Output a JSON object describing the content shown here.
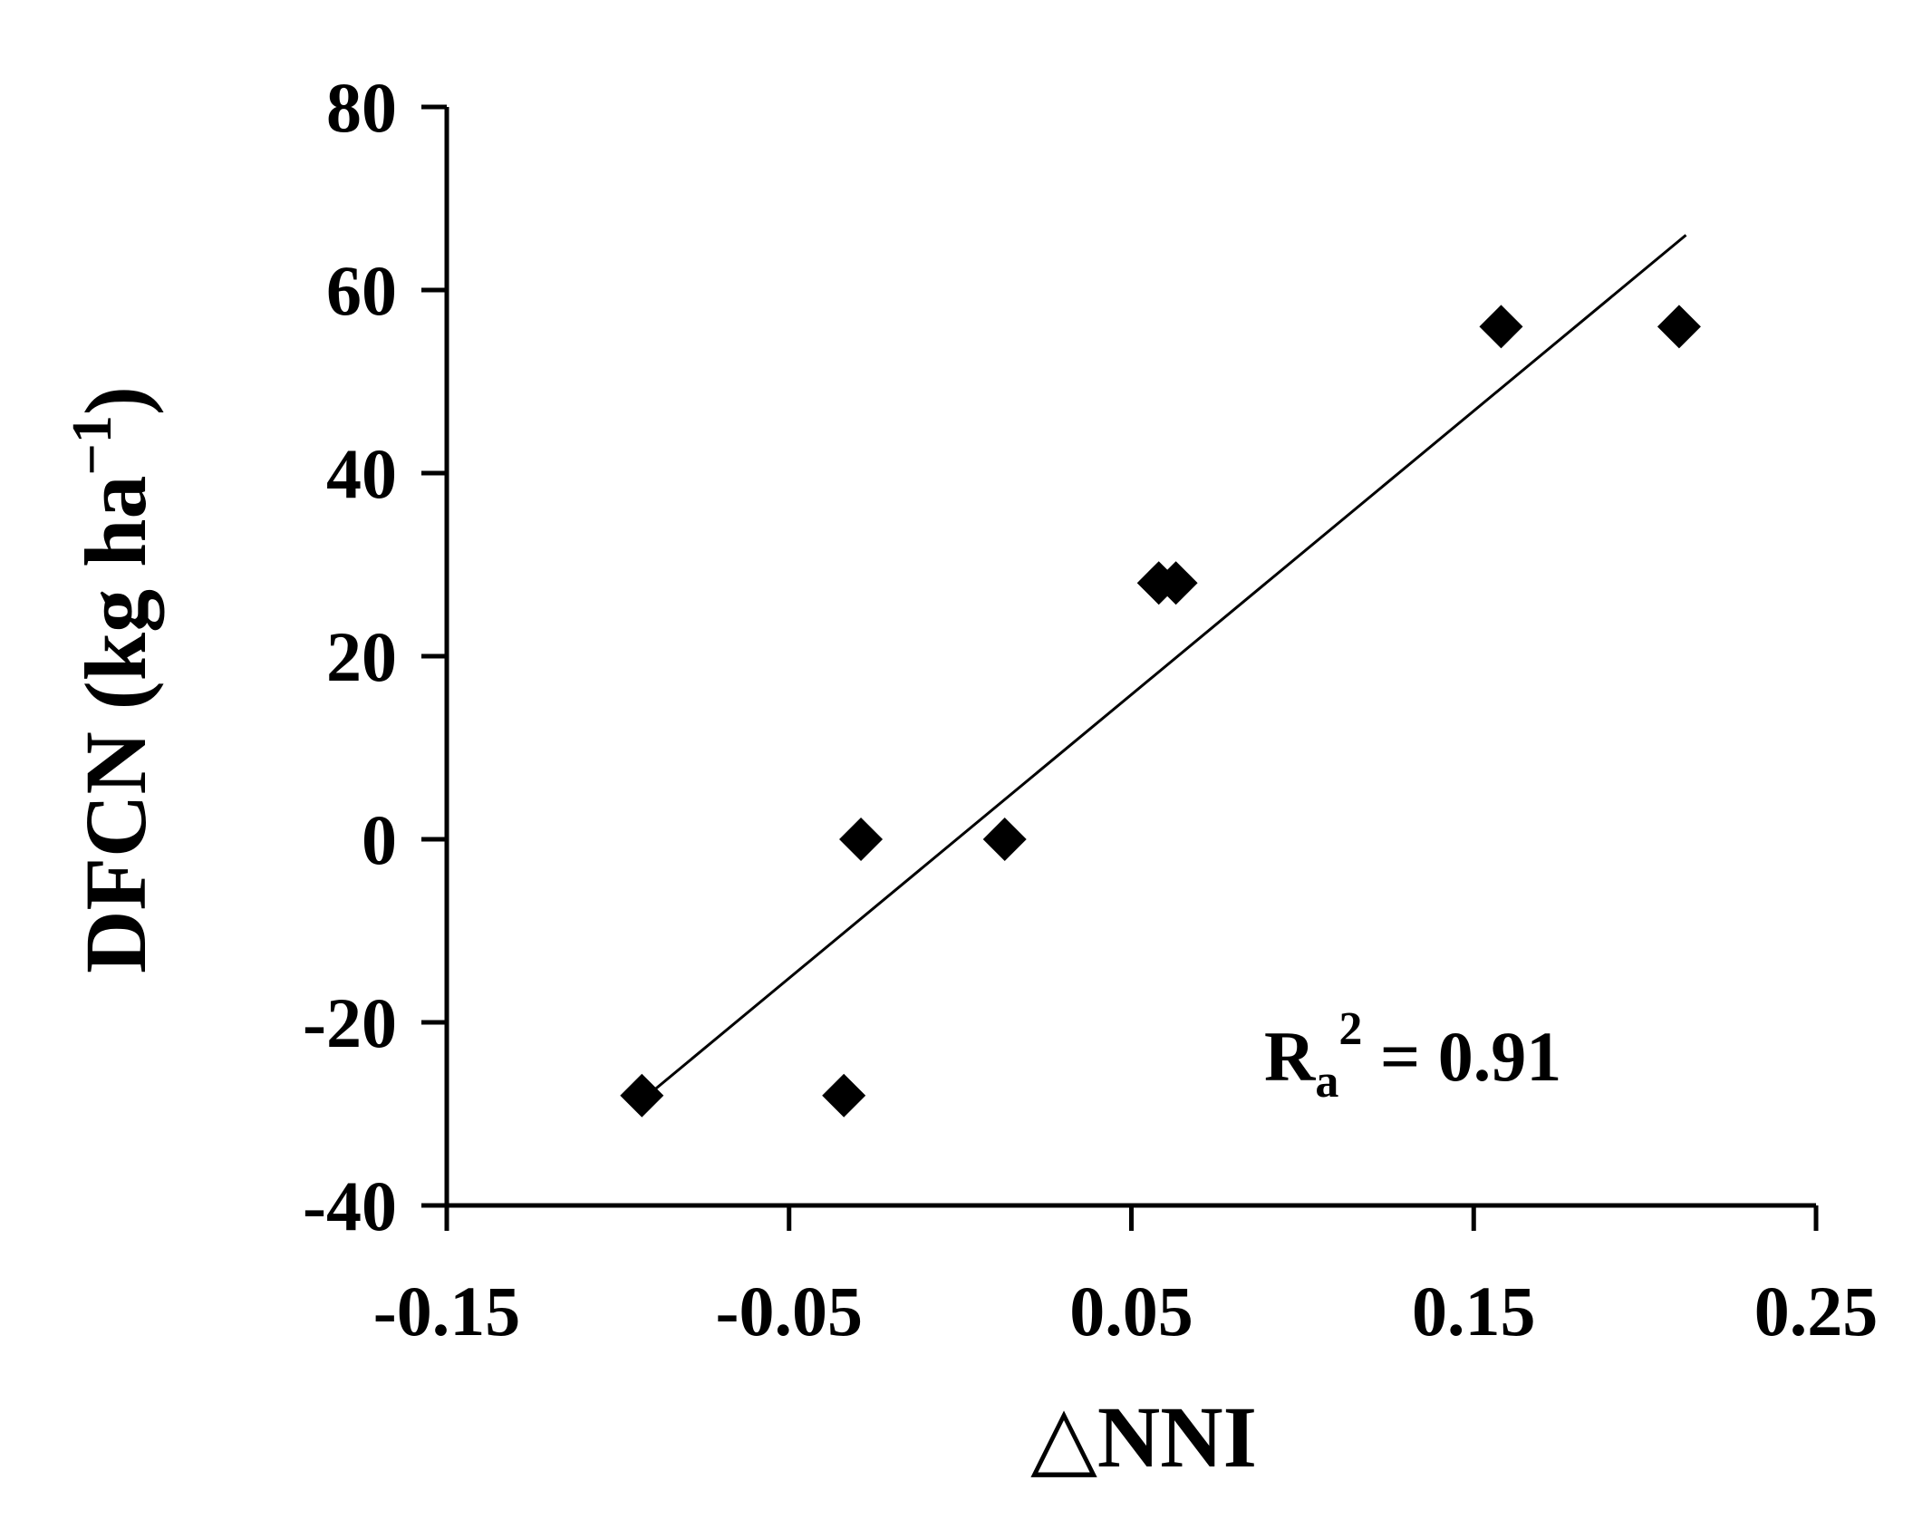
{
  "chart_data": {
    "type": "scatter",
    "title": "",
    "xlabel": "△NNI",
    "ylabel_main": "DFCN (kg ha",
    "ylabel_sup": "−1",
    "ylabel_close": ")",
    "xlim": [
      -0.15,
      0.25
    ],
    "ylim": [
      -40,
      80
    ],
    "xticks": [
      "-0.15",
      "-0.05",
      "0.05",
      "0.15",
      "0.25"
    ],
    "yticks": [
      "-40",
      "-20",
      "0",
      "20",
      "40",
      "60",
      "80"
    ],
    "grid": false,
    "colors": {
      "marker": "#000000",
      "line": "#000000",
      "axis": "#000000"
    },
    "points": [
      {
        "x": -0.093,
        "y": -28
      },
      {
        "x": -0.034,
        "y": -28
      },
      {
        "x": -0.029,
        "y": 0
      },
      {
        "x": 0.013,
        "y": 0
      },
      {
        "x": 0.058,
        "y": 28
      },
      {
        "x": 0.063,
        "y": 28
      },
      {
        "x": 0.158,
        "y": 56
      },
      {
        "x": 0.21,
        "y": 56
      }
    ],
    "fit_line": {
      "x1": -0.093,
      "y1": -28.5,
      "x2": 0.212,
      "y2": 66
    },
    "annotation": {
      "main": "R",
      "sub": "a",
      "sup": "2",
      "rest": " = 0.91"
    }
  }
}
